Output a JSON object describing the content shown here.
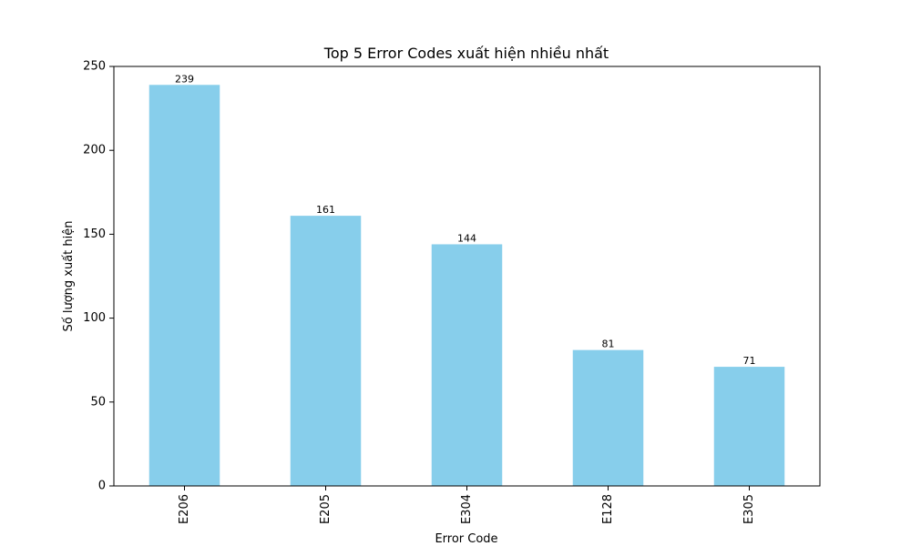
{
  "chart_data": {
    "type": "bar",
    "title": "Top 5 Error Codes xuất hiện nhiều nhất",
    "xlabel": "Error Code",
    "ylabel": "Số lượng xuất hiện",
    "categories": [
      "E206",
      "E205",
      "E304",
      "E128",
      "E305"
    ],
    "values": [
      239,
      161,
      144,
      81,
      71
    ],
    "ylim": [
      0,
      250
    ],
    "yticks": [
      0,
      50,
      100,
      150,
      200,
      250
    ],
    "grid": false,
    "legend": "none",
    "bar_color": "#87CEEB"
  }
}
